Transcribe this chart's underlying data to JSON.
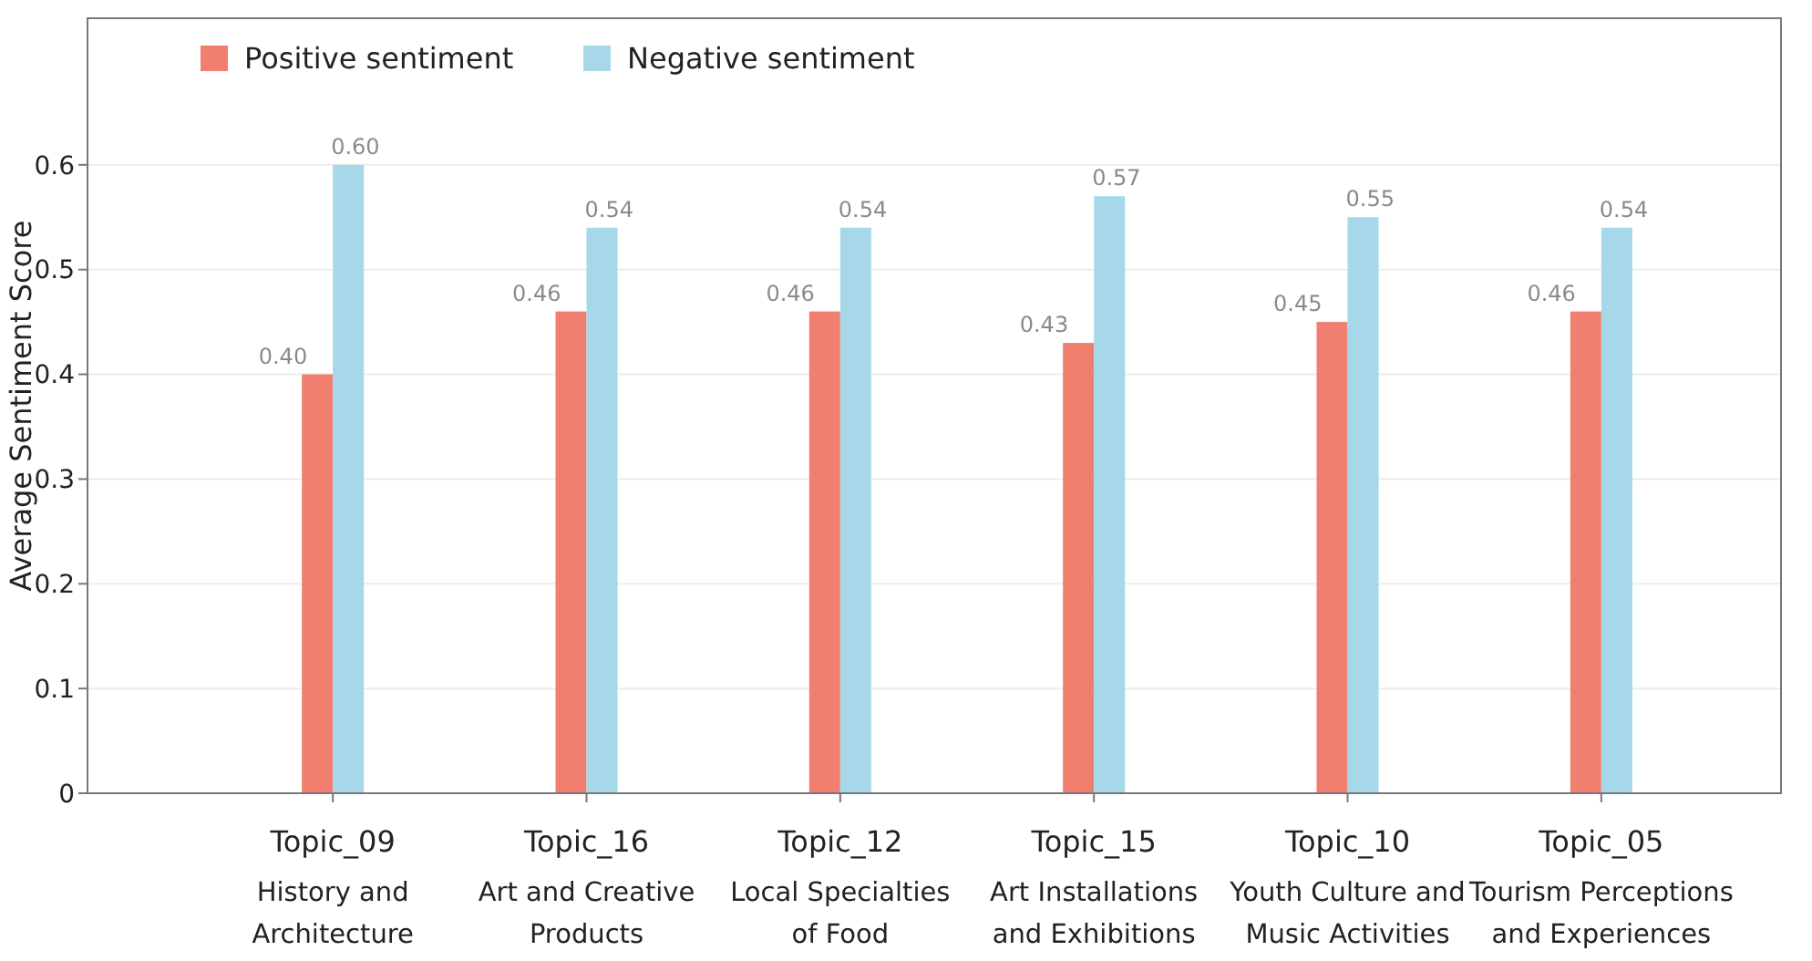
{
  "chart_data": {
    "type": "bar",
    "ylabel": "Average Sentiment Score",
    "categories": [
      "Topic_09\nHistory and\nArchitecture",
      "Topic_16\nArt and Creative\nProducts",
      "Topic_12\nLocal Specialties\nof Food",
      "Topic_15\nArt Installations\nand Exhibitions",
      "Topic_10\nYouth Culture and\nMusic Activities",
      "Topic_05\nTourism Perceptions\nand Experiences"
    ],
    "series": [
      {
        "name": "Positive sentiment",
        "color": "#f07f6f",
        "values": [
          0.4,
          0.46,
          0.46,
          0.43,
          0.45,
          0.46
        ],
        "value_labels": [
          "0.40",
          "0.46",
          "0.46",
          "0.43",
          "0.45",
          "0.46"
        ]
      },
      {
        "name": "Negative sentiment",
        "color": "#a6d8ea",
        "values": [
          0.6,
          0.54,
          0.54,
          0.57,
          0.55,
          0.54
        ],
        "value_labels": [
          "0.60",
          "0.54",
          "0.54",
          "0.57",
          "0.55",
          "0.54"
        ]
      }
    ],
    "ylim": [
      0,
      0.74
    ],
    "yticks": [
      0,
      0.1,
      0.2,
      0.3,
      0.4,
      0.5,
      0.6
    ],
    "grid": "y",
    "legend": "top left"
  }
}
